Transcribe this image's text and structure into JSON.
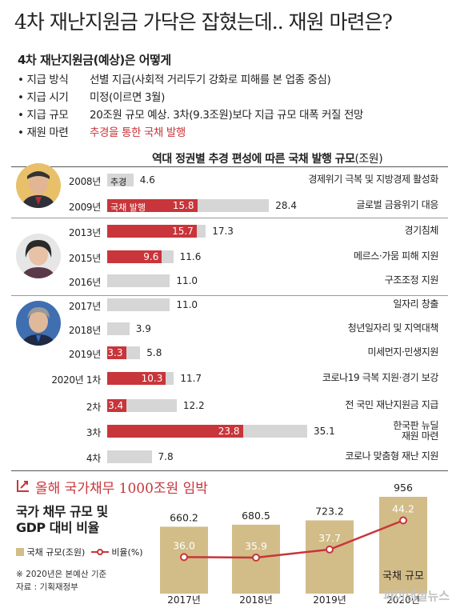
{
  "header": {
    "title": "4차 재난지원금 가닥은 잡혔는데.. 재원 마련은?",
    "subtitle": "4차 재난지원금(예상)은 어떻게"
  },
  "info": [
    {
      "bullet": "•",
      "key": "지급 방식",
      "value": "선별 지급(사회적 거리두기 강화로 피해를 본 업종 중심)",
      "highlight": false
    },
    {
      "bullet": "•",
      "key": "지급 시기",
      "value": "미정(이르면 3월)",
      "highlight": false
    },
    {
      "bullet": "•",
      "key": "지급 규모",
      "value": "20조원 규모 예상. 3차(9.3조원)보다 지급 규모 대폭 커질 전망",
      "highlight": false
    },
    {
      "bullet": "•",
      "key": "재원 마련",
      "value": "추경을 통한 국채 발행",
      "highlight": true
    }
  ],
  "colors": {
    "accent": "#c8353a",
    "total": "#d6d6d6",
    "bottom_bar": "#d2bc88",
    "line": "#c8353a"
  },
  "chart_data": [
    {
      "type": "bar",
      "title": "역대 정권별 추경 편성에 따른 국채 발행 규모",
      "unit": "(조원)",
      "legend": {
        "total": "추경",
        "issue": "국채 발행"
      },
      "categories": [
        "2008년",
        "2009년",
        "2013년",
        "2015년",
        "2016년",
        "2017년",
        "2018년",
        "2019년",
        "2020년 1차",
        "2차",
        "3차",
        "4차"
      ],
      "series": [
        {
          "name": "추경",
          "values": [
            4.6,
            28.4,
            17.3,
            11.6,
            11.0,
            11.0,
            3.9,
            5.8,
            11.7,
            12.2,
            35.1,
            7.8
          ]
        },
        {
          "name": "국채 발행",
          "values": [
            null,
            15.8,
            15.7,
            9.6,
            null,
            null,
            null,
            3.3,
            10.3,
            3.4,
            23.8,
            null
          ]
        }
      ],
      "value_labels": [
        "4.6",
        "28.4",
        "17.3",
        "11.6",
        "11.0",
        "11.0",
        "3.9",
        "5.8",
        "11.7",
        "12.2",
        "35.1",
        "7.8"
      ],
      "issue_labels": [
        "",
        "15.8",
        "15.7",
        "9.6",
        "",
        "",
        "",
        "3.3",
        "10.3",
        "3.4",
        "23.8",
        ""
      ],
      "descriptions": [
        "경제위기 극복 및 지방경제 활성화",
        "글로벌 금융위기 대응",
        "경기침체",
        "메르스·가뭄 피해 지원",
        "구조조정 지원",
        "일자리 창출",
        "청년일자리 및 지역대책",
        "미세먼지·민생지원",
        "코로나19 극복 지원·경기 보강",
        "전 국민 재난지원금 지급",
        "한국판 뉴딜\n재원 마련",
        "코로나 맞춤형 재난 지원"
      ]
    },
    {
      "type": "bar",
      "title": "국가 채무 규모 및\nGDP 대비 비율",
      "categories": [
        "2017년",
        "2018년",
        "2019년",
        "2020년"
      ],
      "series": [
        {
          "name": "국채 규모(조원)",
          "values": [
            660.2,
            680.5,
            723.2,
            956
          ]
        },
        {
          "name": "비율(%)",
          "type": "line",
          "values": [
            36.0,
            35.9,
            37.7,
            44.2
          ]
        }
      ],
      "bar_labels": [
        "660.2",
        "680.5",
        "723.2",
        "956"
      ],
      "line_labels": [
        "36.0",
        "35.9",
        "37.7",
        "44.2"
      ],
      "bar_annotation": "국채 규모"
    }
  ],
  "bottom": {
    "headline": "올해 국가채무 1000조원 임박",
    "note": "※ 2020년은 본예산 기준",
    "source": "자료 : 기획재정부"
  },
  "watermark": "파이낸셜뉴스"
}
